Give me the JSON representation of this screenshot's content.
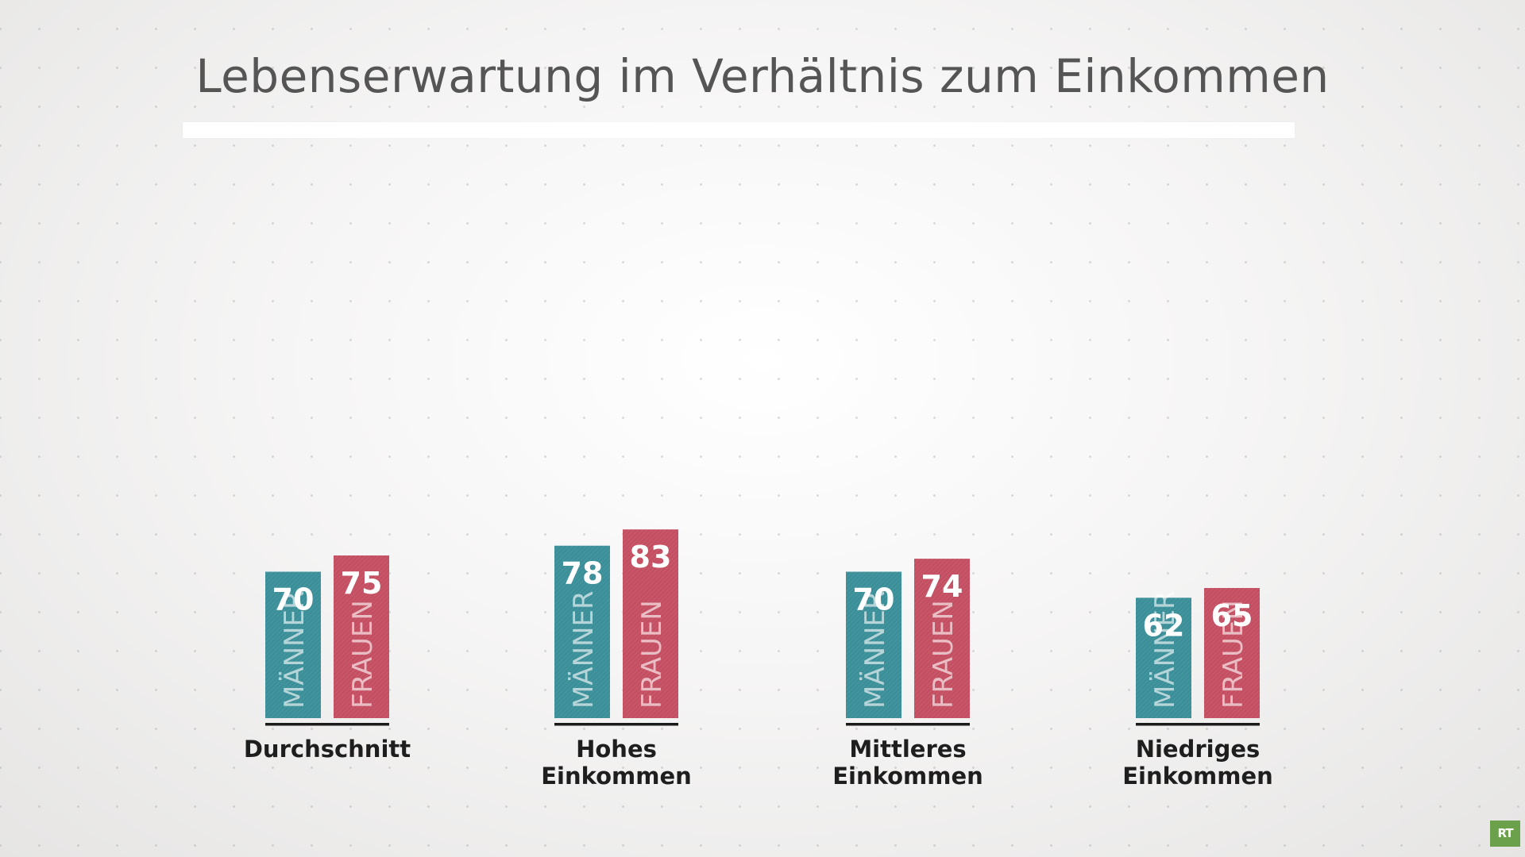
{
  "chart_data": {
    "type": "bar",
    "title": "Lebenserwartung im Verhältnis zum Einkommen",
    "categories": [
      [
        "Durchschnitt"
      ],
      [
        "Hohes",
        "Einkommen"
      ],
      [
        "Mittleres",
        "Einkommen"
      ],
      [
        "Niedriges",
        "Einkommen"
      ]
    ],
    "series": [
      {
        "name": "MÄNNER",
        "values": [
          70,
          78,
          70,
          62
        ],
        "color": "#3b8f99"
      },
      {
        "name": "FRAUEN",
        "values": [
          75,
          83,
          74,
          65
        ],
        "color": "#c44f62"
      }
    ],
    "ylim": [
      25,
      85
    ],
    "grid": false,
    "legend": "labels inside bars",
    "value_label_color": "#ffffff",
    "axis_underline_color": "#1b1b1b"
  },
  "branding": {
    "logo_text": "RT",
    "logo_color": "#6aa14a"
  }
}
